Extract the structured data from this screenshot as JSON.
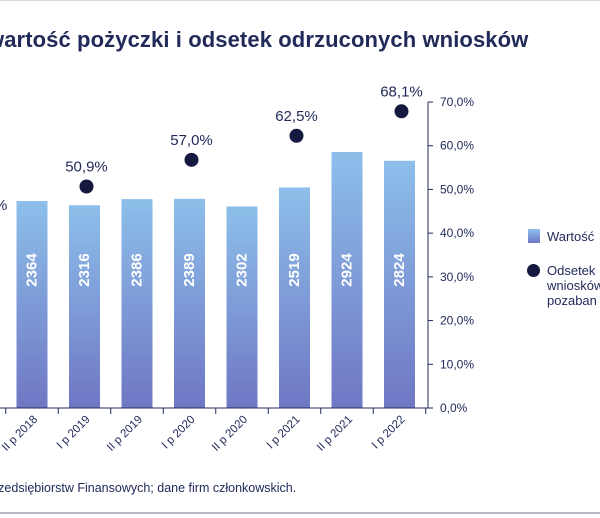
{
  "title": "wartość pożyczki i odsetek odrzuconych wniosków",
  "source": "rzedsiębiorstw Finansowych; dane firm członkowskich.",
  "legend": {
    "bars": "Wartość",
    "dots_line1": "Odsetek",
    "dots_line2": "wniosków",
    "dots_line3": "pozaban"
  },
  "colors": {
    "bar_top": "#8dbfea",
    "bar_bottom": "#6f77c4",
    "dot": "#15193f",
    "axis": "#222a5a"
  },
  "chart_data": {
    "type": "bar",
    "categories": [
      "II p 2018",
      "I p 2019",
      "II p 2019",
      "I p 2020",
      "II p 2020",
      "I p 2021",
      "II p 2021",
      "I p 2022"
    ],
    "series": [
      {
        "values": [
          2364,
          2316,
          2386,
          2389,
          2302,
          2519,
          2924,
          2824
        ]
      },
      {
        "type": "scatter",
        "axis": "right",
        "values": [
          null,
          50.9,
          null,
          57.0,
          null,
          62.5,
          null,
          68.1
        ],
        "labels": [
          "",
          "50,9%",
          "",
          "57,0%",
          "",
          "62,5%",
          "",
          "68,1%"
        ]
      }
    ],
    "bar_axis_range": [
      0,
      3500
    ],
    "y2_range": [
      0,
      70
    ],
    "y2_ticks": [
      "0,0%",
      "10,0%",
      "20,0%",
      "30,0%",
      "40,0%",
      "50,0%",
      "60,0%",
      "70,0%"
    ],
    "grid": false,
    "legend_position": "right"
  }
}
